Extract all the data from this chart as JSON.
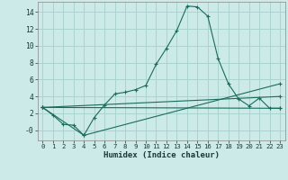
{
  "xlabel": "Humidex (Indice chaleur)",
  "xlim": [
    -0.5,
    23.5
  ],
  "ylim": [
    -1.2,
    15.2
  ],
  "xticks": [
    0,
    1,
    2,
    3,
    4,
    5,
    6,
    7,
    8,
    9,
    10,
    11,
    12,
    13,
    14,
    15,
    16,
    17,
    18,
    19,
    20,
    21,
    22,
    23
  ],
  "yticks": [
    0,
    2,
    4,
    6,
    8,
    10,
    12,
    14
  ],
  "ytick_labels": [
    "-0",
    "2",
    "4",
    "6",
    "8",
    "10",
    "12",
    "14"
  ],
  "background_color": "#cceae7",
  "grid_color": "#aad4d0",
  "line_color": "#1a6b5e",
  "line1_x": [
    0,
    1,
    2,
    3,
    4,
    5,
    6,
    7,
    8,
    9,
    10,
    11,
    12,
    13,
    14,
    15,
    16,
    17,
    18,
    19,
    20,
    21,
    22,
    23
  ],
  "line1_y": [
    2.7,
    1.8,
    0.7,
    0.6,
    -0.6,
    1.5,
    3.0,
    4.3,
    4.5,
    4.8,
    5.3,
    7.8,
    9.7,
    11.8,
    14.7,
    14.6,
    13.5,
    8.5,
    5.5,
    3.7,
    2.9,
    3.8,
    2.6,
    2.6
  ],
  "line2_x": [
    0,
    23
  ],
  "line2_y": [
    2.7,
    2.6
  ],
  "line3_x": [
    0,
    23
  ],
  "line3_y": [
    2.7,
    4.0
  ],
  "line4_x": [
    0,
    4,
    23
  ],
  "line4_y": [
    2.7,
    -0.6,
    5.5
  ]
}
